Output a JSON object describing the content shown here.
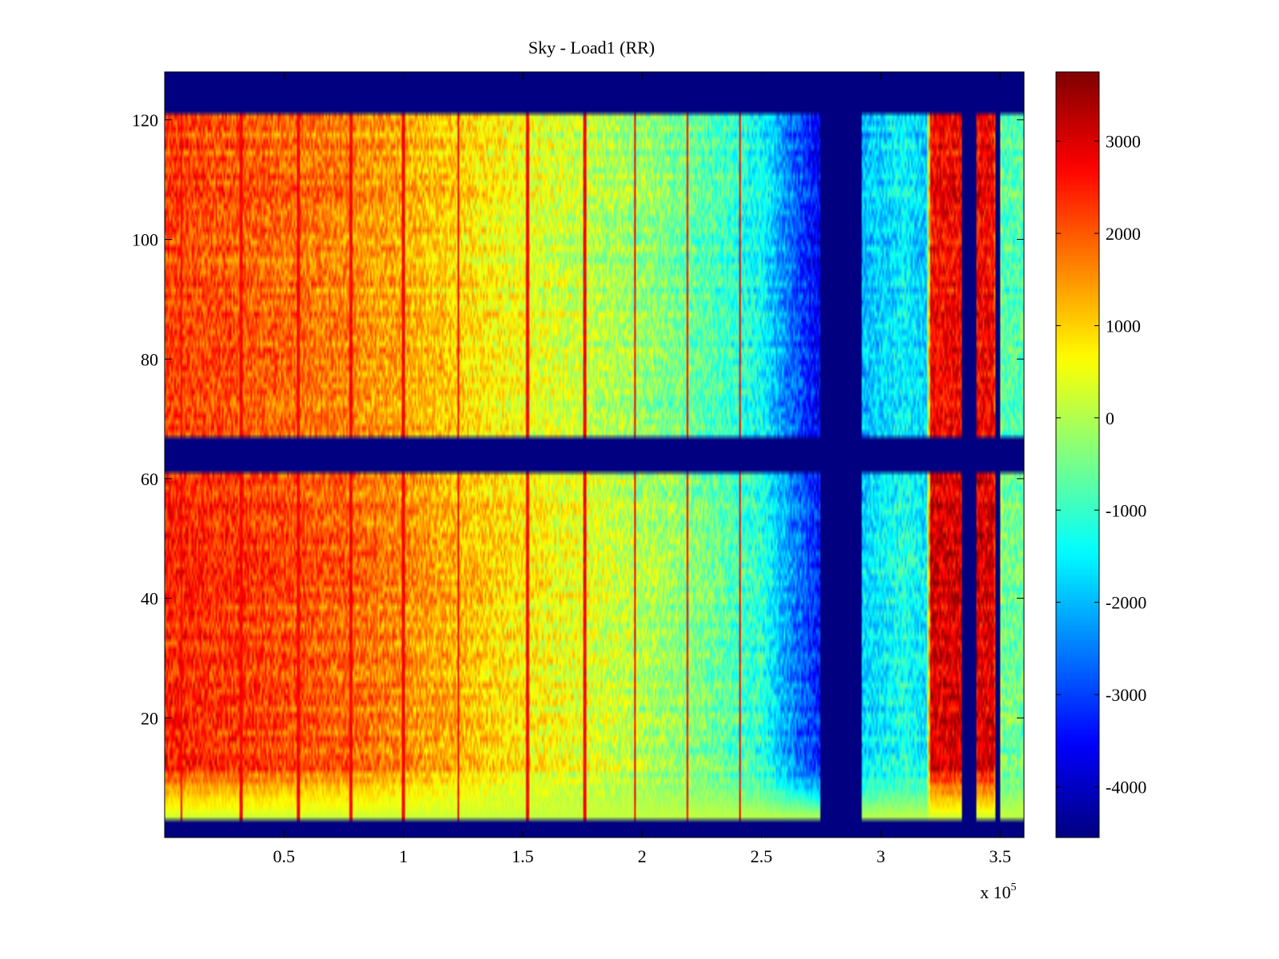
{
  "chart_data": {
    "type": "heatmap",
    "title": "Sky - Load1 (RR)",
    "xlabel": "",
    "ylabel": "",
    "x_exponent_label": "x 10",
    "x_exponent_power": "5",
    "xlim": [
      0,
      3.6
    ],
    "ylim": [
      0,
      128
    ],
    "x_ticks": [
      {
        "value": 0.5,
        "label": "0.5"
      },
      {
        "value": 1,
        "label": "1"
      },
      {
        "value": 1.5,
        "label": "1.5"
      },
      {
        "value": 2,
        "label": "2"
      },
      {
        "value": 2.5,
        "label": "2.5"
      },
      {
        "value": 3,
        "label": "3"
      },
      {
        "value": 3.5,
        "label": "3.5"
      }
    ],
    "y_ticks": [
      {
        "value": 20,
        "label": "20"
      },
      {
        "value": 40,
        "label": "40"
      },
      {
        "value": 60,
        "label": "60"
      },
      {
        "value": 80,
        "label": "80"
      },
      {
        "value": 100,
        "label": "100"
      },
      {
        "value": 120,
        "label": "120"
      }
    ],
    "colorbar": {
      "colormap": "jet",
      "clim": [
        -4550,
        3750
      ],
      "ticks": [
        {
          "value": 3000,
          "label": "3000"
        },
        {
          "value": 2000,
          "label": "2000"
        },
        {
          "value": 1000,
          "label": "1000"
        },
        {
          "value": 0,
          "label": "0"
        },
        {
          "value": -1000,
          "label": "-1000"
        },
        {
          "value": -2000,
          "label": "-2000"
        },
        {
          "value": -3000,
          "label": "-3000"
        },
        {
          "value": -4000,
          "label": "-4000"
        }
      ]
    },
    "masked_value": -4550,
    "masked_row_bands": [
      [
        0,
        3
      ],
      [
        61,
        67
      ],
      [
        121,
        128
      ]
    ],
    "masked_x_bands": [
      [
        2.75,
        2.92
      ],
      [
        3.34,
        3.4
      ],
      [
        3.48,
        3.5
      ]
    ],
    "x_profile": [
      {
        "x": 0.0,
        "value": 2200
      },
      {
        "x": 0.25,
        "value": 2050
      },
      {
        "x": 0.5,
        "value": 1850
      },
      {
        "x": 0.75,
        "value": 1650
      },
      {
        "x": 1.0,
        "value": 1300
      },
      {
        "x": 1.25,
        "value": 900
      },
      {
        "x": 1.5,
        "value": 500
      },
      {
        "x": 1.75,
        "value": 150
      },
      {
        "x": 2.0,
        "value": -250
      },
      {
        "x": 2.25,
        "value": -700
      },
      {
        "x": 2.5,
        "value": -1400
      },
      {
        "x": 2.6,
        "value": -2400
      },
      {
        "x": 2.74,
        "value": -3600
      },
      {
        "x": 2.93,
        "value": -2000
      },
      {
        "x": 3.1,
        "value": -1500
      },
      {
        "x": 3.19,
        "value": -1900
      },
      {
        "x": 3.21,
        "value": 2700
      },
      {
        "x": 3.33,
        "value": 2700
      },
      {
        "x": 3.41,
        "value": 2700
      },
      {
        "x": 3.47,
        "value": 2700
      },
      {
        "x": 3.51,
        "value": -800
      },
      {
        "x": 3.6,
        "value": -800
      }
    ],
    "lower_half_offset": 250,
    "bottom_rows": {
      "rows": [
        3,
        12
      ],
      "value_near_zero": 100
    },
    "bright_column_x": [
      0.07,
      0.32,
      0.56,
      0.78,
      1.0,
      1.23,
      1.52,
      1.76,
      1.97,
      2.19,
      2.41
    ],
    "bright_column_value": 2900
  }
}
